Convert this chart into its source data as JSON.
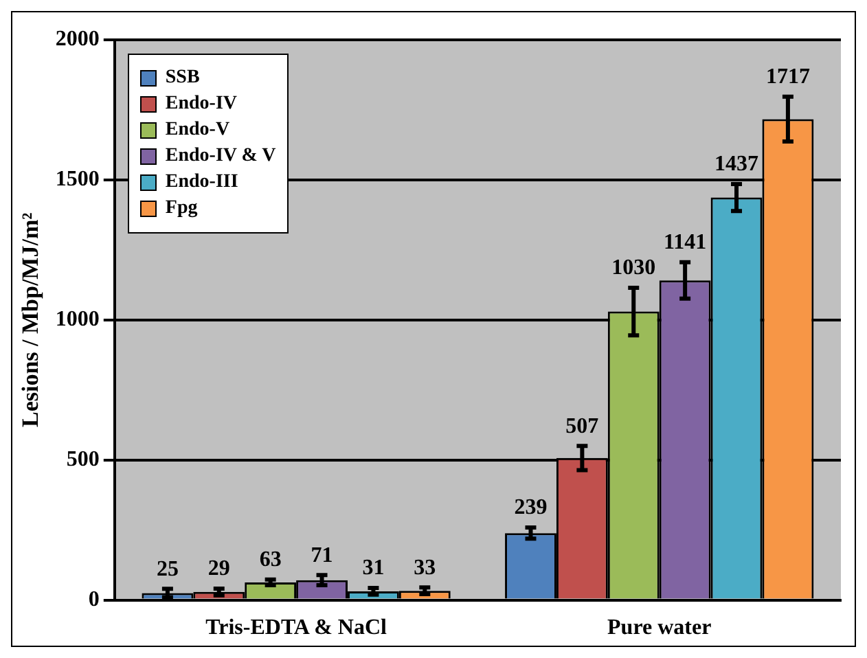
{
  "chart_data": {
    "type": "bar",
    "ylabel": "Lesions / Mbp/MJ/m²",
    "categories": [
      "Tris-EDTA & NaCl",
      "Pure water"
    ],
    "series": [
      {
        "name": "SSB",
        "color": "#4f81bd",
        "values": [
          25,
          239
        ],
        "errors": [
          15,
          20
        ]
      },
      {
        "name": "Endo-IV",
        "color": "#c0504d",
        "values": [
          29,
          507
        ],
        "errors": [
          12,
          43
        ]
      },
      {
        "name": "Endo-V",
        "color": "#9bbb59",
        "values": [
          63,
          1030
        ],
        "errors": [
          10,
          85
        ]
      },
      {
        "name": "Endo-IV & V",
        "color": "#8064a2",
        "values": [
          71,
          1141
        ],
        "errors": [
          18,
          65
        ]
      },
      {
        "name": "Endo-III",
        "color": "#4bacc6",
        "values": [
          31,
          1437
        ],
        "errors": [
          12,
          48
        ]
      },
      {
        "name": "Fpg",
        "color": "#f79646",
        "values": [
          33,
          1717
        ],
        "errors": [
          12,
          80
        ]
      }
    ],
    "ylim": [
      0,
      2000
    ],
    "yticks": [
      0,
      500,
      1000,
      1500,
      2000
    ],
    "grid": "y",
    "legend": "top left",
    "data_labels": true
  }
}
